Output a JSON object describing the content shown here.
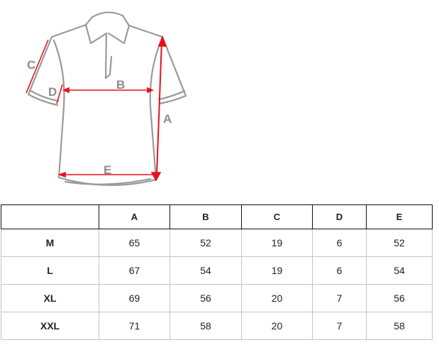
{
  "diagram": {
    "labels": {
      "a": "A",
      "b": "B",
      "c": "C",
      "d": "D",
      "e": "E"
    },
    "outline_color": "#9a9a9a",
    "arrow_color": "#e8101c"
  },
  "table": {
    "headers": [
      "",
      "A",
      "B",
      "C",
      "D",
      "E"
    ],
    "rows": [
      {
        "size": "M",
        "values": [
          "65",
          "52",
          "19",
          "6",
          "52"
        ]
      },
      {
        "size": "L",
        "values": [
          "67",
          "54",
          "19",
          "6",
          "54"
        ]
      },
      {
        "size": "XL",
        "values": [
          "69",
          "56",
          "20",
          "7",
          "56"
        ]
      },
      {
        "size": "XXL",
        "values": [
          "71",
          "58",
          "20",
          "7",
          "58"
        ]
      }
    ]
  }
}
